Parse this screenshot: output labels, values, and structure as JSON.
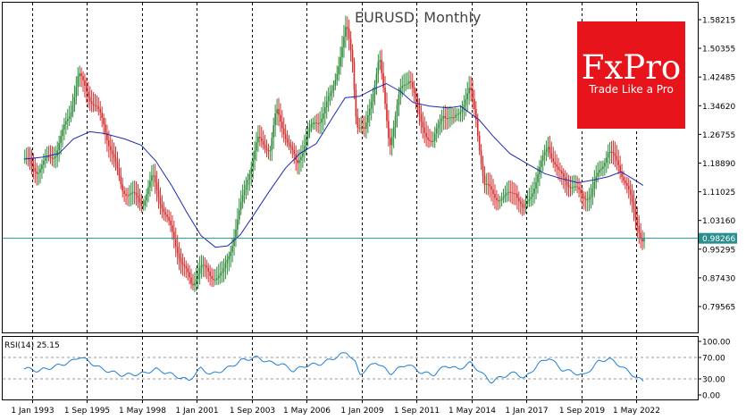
{
  "chart_data": [
    {
      "type": "candlestick",
      "title": "EURUSD, Monthly",
      "instrument": "EURUSD",
      "timeframe": "Monthly",
      "ylim": [
        0.72,
        1.62
      ],
      "y_ticks": [
        "1.58215",
        "1.50355",
        "1.42485",
        "1.34620",
        "1.26755",
        "1.18890",
        "1.11025",
        "1.03160",
        "0.95295",
        "0.87430",
        "0.79565"
      ],
      "x_ticks": [
        "1 Jan 1993",
        "1 Sep 1995",
        "1 May 1998",
        "1 Jan 2001",
        "1 Sep 2003",
        "1 May 2006",
        "1 Jan 2009",
        "1 Sep 2011",
        "1 May 2014",
        "1 Jan 2017",
        "1 Sep 2019",
        "1 May 2022"
      ],
      "x_tick_years": [
        1993.0,
        1995.667,
        1998.333,
        2001.0,
        2003.667,
        2006.333,
        2009.0,
        2011.667,
        2014.333,
        2017.0,
        2019.667,
        2022.333
      ],
      "x_range_years": [
        1992.6,
        2022.75
      ],
      "current_price": "0.98266",
      "current_price_value": 0.98266,
      "colors": {
        "bull": "#2e8b3a",
        "bear": "#d62d2d",
        "moving_average": "#1a2bb0",
        "price_line": "#2a8f8f",
        "grid": "#000000"
      },
      "price_anchors": [
        [
          1992.6,
          1.2
        ],
        [
          1993.3,
          1.17
        ],
        [
          1994.2,
          1.22
        ],
        [
          1994.9,
          1.33
        ],
        [
          1995.3,
          1.43
        ],
        [
          1996.5,
          1.3
        ],
        [
          1997.4,
          1.12
        ],
        [
          1997.9,
          1.1
        ],
        [
          1998.4,
          1.08
        ],
        [
          1998.9,
          1.15
        ],
        [
          1999.5,
          1.05
        ],
        [
          2000.3,
          0.92
        ],
        [
          2000.8,
          0.85
        ],
        [
          2001.2,
          0.91
        ],
        [
          2001.7,
          0.88
        ],
        [
          2002.3,
          0.88
        ],
        [
          2002.9,
          1.0
        ],
        [
          2003.5,
          1.15
        ],
        [
          2004.0,
          1.25
        ],
        [
          2004.6,
          1.23
        ],
        [
          2004.9,
          1.33
        ],
        [
          2005.4,
          1.26
        ],
        [
          2005.9,
          1.18
        ],
        [
          2006.4,
          1.27
        ],
        [
          2007.0,
          1.31
        ],
        [
          2007.6,
          1.38
        ],
        [
          2008.3,
          1.56
        ],
        [
          2008.6,
          1.47
        ],
        [
          2008.8,
          1.3
        ],
        [
          2009.2,
          1.27
        ],
        [
          2009.9,
          1.48
        ],
        [
          2010.4,
          1.24
        ],
        [
          2010.9,
          1.38
        ],
        [
          2011.4,
          1.43
        ],
        [
          2011.9,
          1.3
        ],
        [
          2012.5,
          1.24
        ],
        [
          2013.0,
          1.33
        ],
        [
          2013.5,
          1.3
        ],
        [
          2014.3,
          1.39
        ],
        [
          2014.6,
          1.31
        ],
        [
          2015.0,
          1.13
        ],
        [
          2015.5,
          1.1
        ],
        [
          2016.0,
          1.09
        ],
        [
          2016.5,
          1.12
        ],
        [
          2016.9,
          1.05
        ],
        [
          2017.5,
          1.14
        ],
        [
          2018.1,
          1.24
        ],
        [
          2018.6,
          1.16
        ],
        [
          2019.2,
          1.13
        ],
        [
          2019.7,
          1.1
        ],
        [
          2020.2,
          1.1
        ],
        [
          2020.6,
          1.17
        ],
        [
          2021.0,
          1.22
        ],
        [
          2021.5,
          1.19
        ],
        [
          2021.9,
          1.13
        ],
        [
          2022.3,
          1.05
        ],
        [
          2022.67,
          0.98
        ]
      ],
      "moving_average": [
        [
          1992.6,
          1.2
        ],
        [
          1993.5,
          1.205
        ],
        [
          1994.3,
          1.215
        ],
        [
          1995.0,
          1.255
        ],
        [
          1995.8,
          1.275
        ],
        [
          1996.5,
          1.27
        ],
        [
          1997.5,
          1.255
        ],
        [
          1998.3,
          1.238
        ],
        [
          1999.0,
          1.195
        ],
        [
          1999.8,
          1.125
        ],
        [
          2000.5,
          1.055
        ],
        [
          2001.2,
          0.99
        ],
        [
          2001.9,
          0.958
        ],
        [
          2002.5,
          0.962
        ],
        [
          2003.1,
          0.992
        ],
        [
          2003.8,
          1.05
        ],
        [
          2004.5,
          1.11
        ],
        [
          2005.3,
          1.175
        ],
        [
          2006.0,
          1.215
        ],
        [
          2006.8,
          1.242
        ],
        [
          2007.6,
          1.315
        ],
        [
          2008.2,
          1.368
        ],
        [
          2008.9,
          1.372
        ],
        [
          2009.6,
          1.392
        ],
        [
          2010.2,
          1.407
        ],
        [
          2010.9,
          1.385
        ],
        [
          2011.5,
          1.355
        ],
        [
          2012.3,
          1.345
        ],
        [
          2013.2,
          1.34
        ],
        [
          2013.8,
          1.345
        ],
        [
          2014.7,
          1.308
        ],
        [
          2015.4,
          1.262
        ],
        [
          2016.2,
          1.215
        ],
        [
          2017.2,
          1.182
        ],
        [
          2017.9,
          1.16
        ],
        [
          2018.6,
          1.148
        ],
        [
          2019.5,
          1.135
        ],
        [
          2020.3,
          1.143
        ],
        [
          2021.0,
          1.152
        ],
        [
          2021.6,
          1.165
        ],
        [
          2022.2,
          1.145
        ],
        [
          2022.67,
          1.128
        ]
      ]
    },
    {
      "type": "line",
      "series_label": "RSI(14) 25.15",
      "ylim": [
        0,
        100
      ],
      "y_ticks": [
        "100.00",
        "70.00",
        "30.00",
        "0.00"
      ],
      "levels": [
        70,
        30
      ],
      "colors": {
        "line": "#1e7fd8",
        "levels": "#999999"
      },
      "values_anchors": [
        [
          1992.6,
          50
        ],
        [
          1993.3,
          45
        ],
        [
          1994.0,
          52
        ],
        [
          1994.9,
          62
        ],
        [
          1995.3,
          72
        ],
        [
          1996.4,
          48
        ],
        [
          1997.4,
          37
        ],
        [
          1998.4,
          40
        ],
        [
          1999.0,
          48
        ],
        [
          1999.8,
          38
        ],
        [
          2000.6,
          27
        ],
        [
          2001.2,
          50
        ],
        [
          2001.7,
          38
        ],
        [
          2002.5,
          50
        ],
        [
          2003.2,
          65
        ],
        [
          2003.9,
          70
        ],
        [
          2004.6,
          60
        ],
        [
          2005.1,
          58
        ],
        [
          2005.7,
          45
        ],
        [
          2006.3,
          55
        ],
        [
          2007.0,
          58
        ],
        [
          2007.6,
          68
        ],
        [
          2008.3,
          80
        ],
        [
          2008.7,
          60
        ],
        [
          2008.9,
          38
        ],
        [
          2009.7,
          62
        ],
        [
          2010.4,
          40
        ],
        [
          2011.2,
          58
        ],
        [
          2011.9,
          42
        ],
        [
          2012.5,
          38
        ],
        [
          2013.1,
          55
        ],
        [
          2013.7,
          48
        ],
        [
          2014.3,
          60
        ],
        [
          2014.9,
          38
        ],
        [
          2015.3,
          24
        ],
        [
          2015.8,
          34
        ],
        [
          2016.5,
          42
        ],
        [
          2016.9,
          30
        ],
        [
          2017.6,
          58
        ],
        [
          2018.1,
          70
        ],
        [
          2018.7,
          48
        ],
        [
          2019.3,
          42
        ],
        [
          2019.8,
          36
        ],
        [
          2020.5,
          62
        ],
        [
          2021.0,
          68
        ],
        [
          2021.6,
          54
        ],
        [
          2022.0,
          42
        ],
        [
          2022.67,
          25.15
        ]
      ]
    }
  ],
  "brand": {
    "logo_text": "FxPro",
    "tagline": "Trade Like a Pro",
    "color": "#e8141c"
  }
}
